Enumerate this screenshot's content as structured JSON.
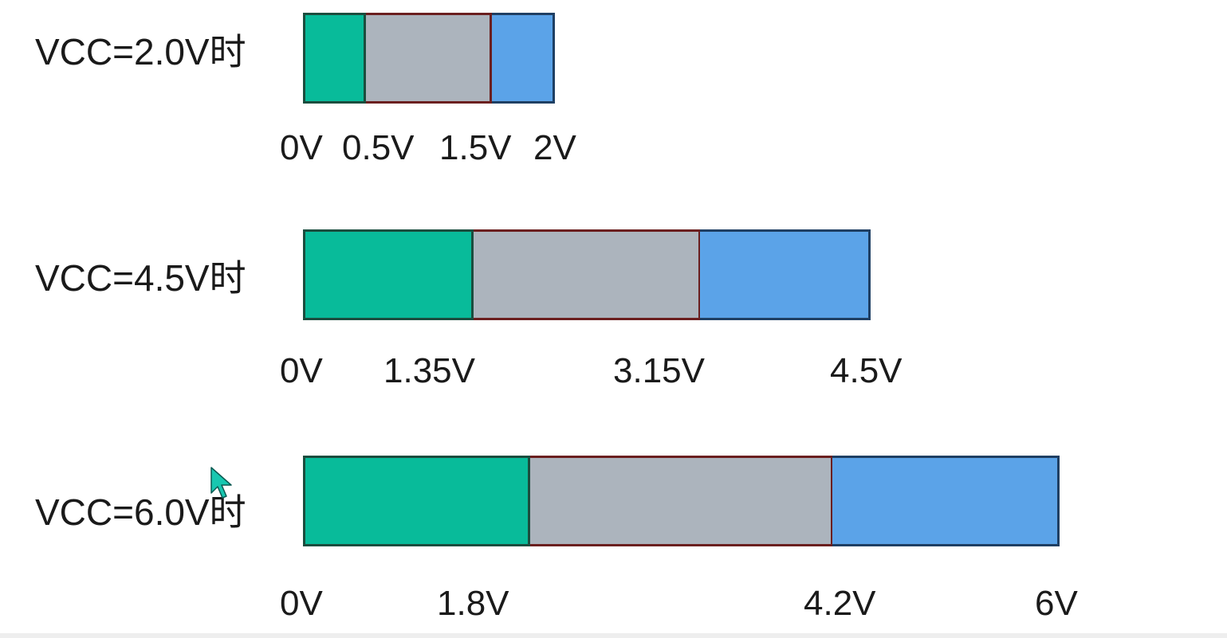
{
  "colors": {
    "low": "#08bb9a",
    "mid": "#acb4bd",
    "high": "#5ba3e8",
    "border_low": "#1b4d3e",
    "border_mid": "#6b1f1f",
    "border_high": "#1f3f63"
  },
  "rows": [
    {
      "label": "VCC=2.0V时",
      "vcc": 2.0,
      "thresholds": [
        0,
        0.5,
        1.5,
        2
      ],
      "tick_labels": [
        "0V",
        "0.5V",
        "1.5V",
        "2V"
      ]
    },
    {
      "label": "VCC=4.5V时",
      "vcc": 4.5,
      "thresholds": [
        0,
        1.35,
        3.15,
        4.5
      ],
      "tick_labels": [
        "0V",
        "1.35V",
        "3.15V",
        "4.5V"
      ]
    },
    {
      "label": "VCC=6.0V时",
      "vcc": 6.0,
      "thresholds": [
        0,
        1.8,
        4.2,
        6
      ],
      "tick_labels": [
        "0V",
        "1.8V",
        "4.2V",
        "6V"
      ]
    }
  ],
  "cursor": {
    "icon": "mouse-pointer-icon",
    "color": "#18c7b0"
  }
}
